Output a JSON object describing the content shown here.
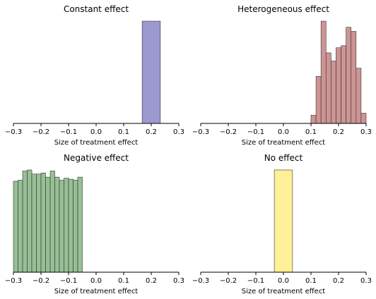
{
  "chart_data": [
    {
      "type": "bar",
      "title": "Constant effect",
      "xlabel": "Size of treatment effect",
      "ylabel": "",
      "xlim": [
        -0.3,
        0.3
      ],
      "xticks": [
        "−0.3",
        "−0.2",
        "−0.1",
        "0.0",
        "0.1",
        "0.2",
        "0.3"
      ],
      "color": "#9b99d0",
      "bins": [
        {
          "x0": 0.167,
          "x1": 0.233,
          "height": 1.0
        }
      ]
    },
    {
      "type": "bar",
      "title": "Heterogeneous effect",
      "xlabel": "Size of treatment effect",
      "ylabel": "",
      "xlim": [
        -0.3,
        0.3
      ],
      "xticks": [
        "−0.3",
        "−0.2",
        "−0.1",
        "0.0",
        "0.1",
        "0.2",
        "0.3"
      ],
      "color": "#cd9494",
      "bin_start": 0.1,
      "bin_width": 0.01818,
      "heights": [
        0.08,
        0.46,
        1.0,
        0.69,
        0.61,
        0.74,
        0.76,
        0.94,
        0.9,
        0.54,
        0.1
      ]
    },
    {
      "type": "bar",
      "title": "Negative effect",
      "xlabel": "Size of treatment effect",
      "ylabel": "",
      "xlim": [
        -0.3,
        0.3
      ],
      "xticks": [
        "−0.3",
        "−0.2",
        "−0.1",
        "0.0",
        "0.1",
        "0.2",
        "0.3"
      ],
      "color": "#97c095",
      "bin_start": -0.3,
      "bin_width": 0.01667,
      "heights": [
        0.89,
        0.9,
        0.99,
        1.0,
        0.96,
        0.96,
        0.97,
        0.93,
        0.99,
        0.93,
        0.9,
        0.92,
        0.91,
        0.9,
        0.93
      ]
    },
    {
      "type": "bar",
      "title": "No effect",
      "xlabel": "Size of treatment effect",
      "ylabel": "",
      "xlim": [
        -0.3,
        0.3
      ],
      "xticks": [
        "−0.3",
        "−0.2",
        "−0.1",
        "0.0",
        "0.1",
        "0.2",
        "0.3"
      ],
      "color": "#fdf096",
      "bins": [
        {
          "x0": -0.033,
          "x1": 0.033,
          "height": 1.0
        }
      ]
    }
  ]
}
